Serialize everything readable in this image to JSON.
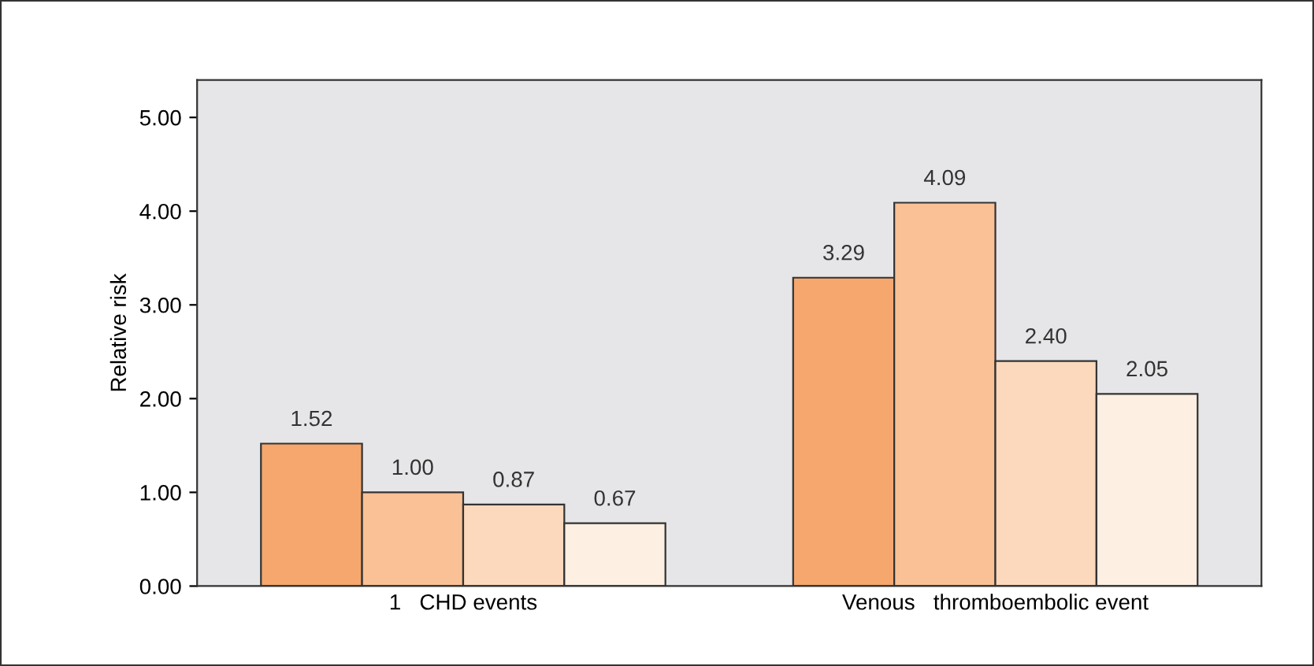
{
  "chart_data": {
    "type": "bar",
    "ylabel": "Relative risk",
    "categories": [
      "1   CHD events",
      "Venous   thromboembolic event"
    ],
    "series": [
      {
        "color": "#f6a76e",
        "values": [
          1.52,
          3.29
        ],
        "value_labels": [
          "1.52",
          "3.29"
        ]
      },
      {
        "color": "#f9c195",
        "values": [
          1.0,
          4.09
        ],
        "value_labels": [
          "1.00",
          "4.09"
        ]
      },
      {
        "color": "#fcd9bc",
        "values": [
          0.87,
          2.4
        ],
        "value_labels": [
          "0.87",
          "2.40"
        ]
      },
      {
        "color": "#fdefe2",
        "values": [
          0.67,
          2.05
        ],
        "value_labels": [
          "0.67",
          "2.05"
        ]
      }
    ],
    "ylim": [
      0,
      5.4
    ],
    "yticks": [
      {
        "value": 0,
        "label": "0.00"
      },
      {
        "value": 1,
        "label": "1.00"
      },
      {
        "value": 2,
        "label": "2.00"
      },
      {
        "value": 3,
        "label": "3.00"
      },
      {
        "value": 4,
        "label": "4.00"
      },
      {
        "value": 5,
        "label": "5.00"
      }
    ],
    "grid": false,
    "legend": false
  }
}
